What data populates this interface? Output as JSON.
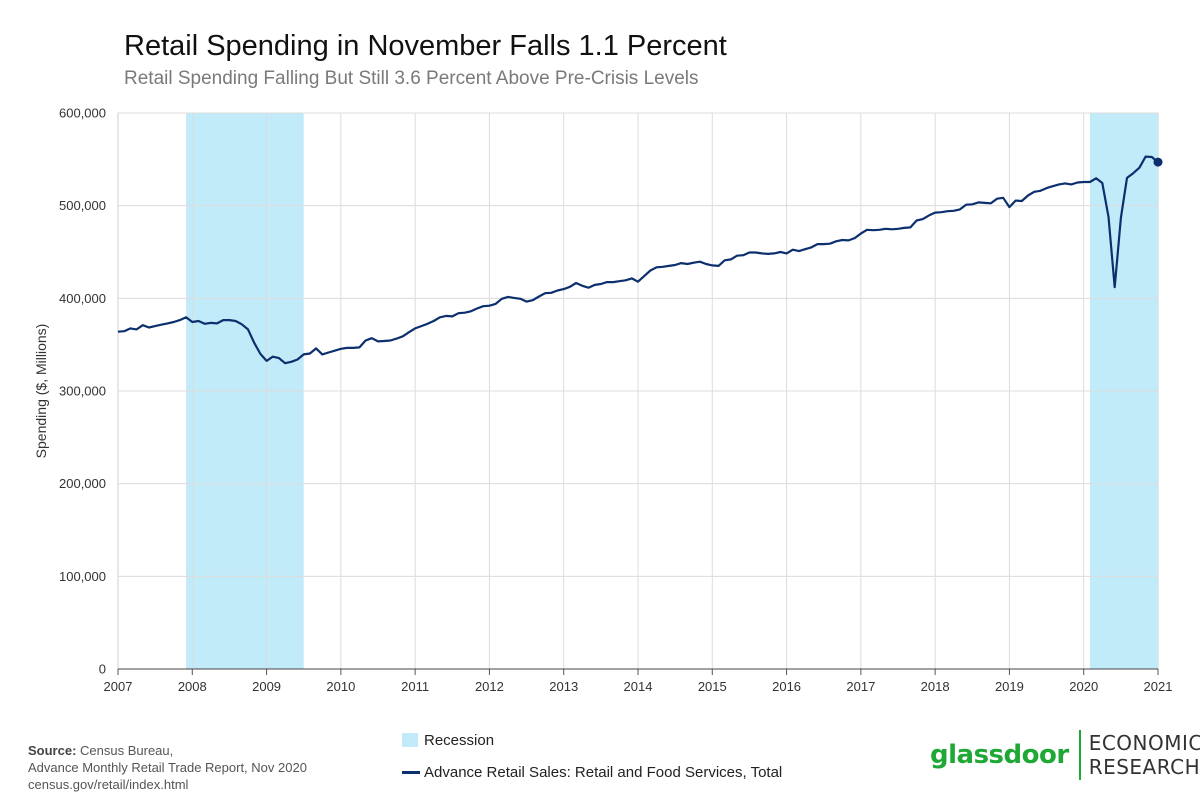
{
  "colors": {
    "line": "#0c2f6e",
    "recession": "#c2ebf9",
    "grid": "#dcdcdc",
    "brand_green": "#1fa835"
  },
  "logo": {
    "wordmark": "glassdoor",
    "line1": "ECONOMIC",
    "line2": "RESEARCH"
  },
  "source": {
    "label": "Source:",
    "line1": "Census Bureau,",
    "line2": "Advance Monthly Retail Trade Report, Nov 2020",
    "line3": "census.gov/retail/index.html"
  },
  "chart_data": {
    "type": "line",
    "title": "Retail Spending in November Falls 1.1 Percent",
    "subtitle": "Retail Spending Falling But Still 3.6 Percent Above Pre-Crisis Levels",
    "ylabel": "Spending ($, Millions)",
    "xlabel": "",
    "xlim": [
      2007,
      2021
    ],
    "ylim": [
      0,
      600000
    ],
    "x_ticks": [
      "2007",
      "2008",
      "2009",
      "2010",
      "2011",
      "2012",
      "2013",
      "2014",
      "2015",
      "2016",
      "2017",
      "2018",
      "2019",
      "2020",
      "2021"
    ],
    "y_ticks": [
      "0",
      "100,000",
      "200,000",
      "300,000",
      "400,000",
      "500,000",
      "600,000"
    ],
    "grid": true,
    "legend_position": "bottom",
    "recessions": [
      {
        "name": "Recession",
        "start": "2007-12",
        "end": "2009-06"
      },
      {
        "name": "Recession",
        "start": "2020-02",
        "end": "2020-12"
      }
    ],
    "series": [
      {
        "name": "Advance Retail Sales: Retail and Food Services, Total",
        "start": "2007-01",
        "frequency": "monthly",
        "values": [
          364000,
          364500,
          367500,
          366500,
          371000,
          368500,
          370000,
          371500,
          373000,
          374500,
          376500,
          379500,
          374500,
          375500,
          372500,
          373500,
          373000,
          376500,
          376500,
          375500,
          372000,
          366500,
          352000,
          340000,
          332500,
          337000,
          335500,
          330000,
          331500,
          334000,
          339500,
          340500,
          346000,
          339500,
          341500,
          343500,
          345500,
          346500,
          346500,
          347000,
          354500,
          357000,
          353500,
          354000,
          354500,
          356500,
          359000,
          363500,
          367500,
          370000,
          372500,
          375500,
          379500,
          381000,
          380500,
          384000,
          384500,
          386000,
          389000,
          391500,
          392000,
          394000,
          399500,
          401500,
          400500,
          399500,
          396500,
          398000,
          402000,
          405500,
          406000,
          408500,
          410000,
          412500,
          416500,
          413500,
          411500,
          414500,
          415500,
          417500,
          417500,
          418500,
          419500,
          421500,
          418000,
          424000,
          430000,
          433500,
          434000,
          435000,
          436000,
          438000,
          437000,
          438500,
          439500,
          437000,
          435500,
          435000,
          441000,
          442000,
          446000,
          446500,
          449500,
          449500,
          448500,
          448000,
          448500,
          450000,
          448500,
          452500,
          451000,
          453000,
          455000,
          458500,
          458500,
          459000,
          461500,
          463000,
          462500,
          465000,
          470000,
          474000,
          473500,
          474000,
          475000,
          474500,
          475000,
          476000,
          476500,
          484000,
          485500,
          489500,
          492500,
          493000,
          494000,
          494500,
          496000,
          501000,
          501500,
          503500,
          503000,
          502500,
          507500,
          508500,
          498500,
          505500,
          505000,
          511000,
          515000,
          516000,
          519000,
          521000,
          523000,
          524000,
          523000,
          525000,
          525500,
          525500,
          529500,
          524500,
          488000,
          412000,
          487000,
          530000,
          535000,
          541000,
          553000,
          552500,
          547000
        ]
      }
    ]
  }
}
